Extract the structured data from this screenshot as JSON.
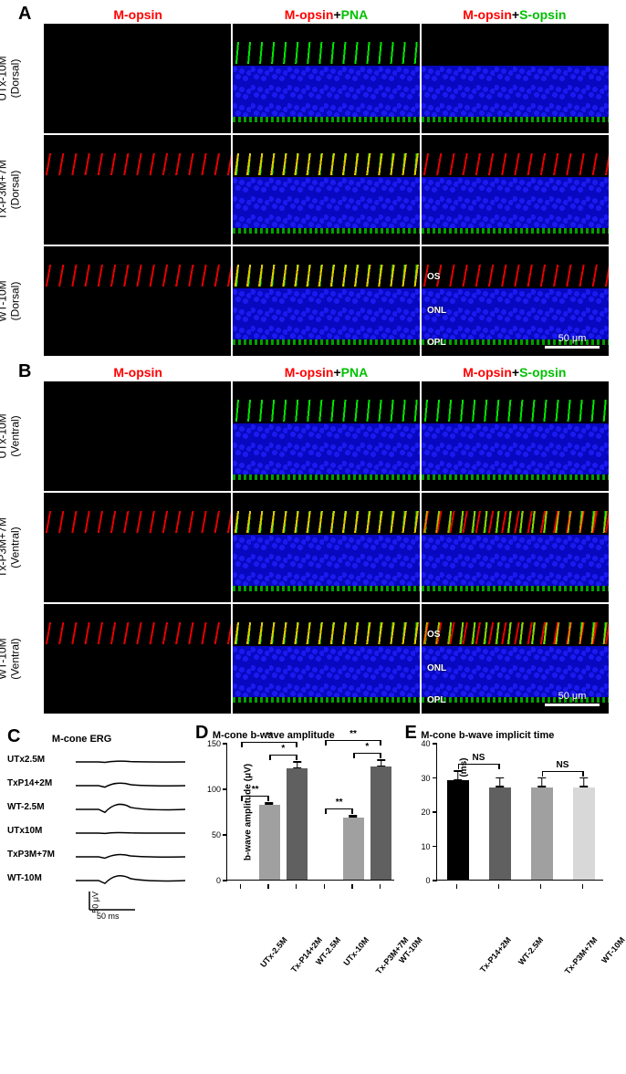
{
  "panel_a": {
    "label": "A",
    "column_headers": [
      [
        {
          "text": "M-opsin",
          "color": "#ff0000"
        }
      ],
      [
        {
          "text": "M-opsin",
          "color": "#ff0000"
        },
        {
          "text": "+",
          "color": "#000000"
        },
        {
          "text": "PNA",
          "color": "#00c000"
        }
      ],
      [
        {
          "text": "M-opsin",
          "color": "#ff0000"
        },
        {
          "text": "+",
          "color": "#000000"
        },
        {
          "text": "S-opsin",
          "color": "#00c000"
        }
      ]
    ],
    "rows": [
      {
        "label_line1": "UTx-10M",
        "label_line2": "(Dorsal)",
        "has_mopsin": false,
        "has_sopsin": false
      },
      {
        "label_line1": "Tx-P3M+7M",
        "label_line2": "(Dorsal)",
        "has_mopsin": true,
        "has_sopsin": false
      },
      {
        "label_line1": "WT-10M",
        "label_line2": "(Dorsal)",
        "has_mopsin": true,
        "has_sopsin": false,
        "annotations": [
          "OS",
          "ONL",
          "OPL"
        ],
        "scale_bar": "50 μm"
      }
    ]
  },
  "panel_b": {
    "label": "B",
    "column_headers": [
      [
        {
          "text": "M-opsin",
          "color": "#ff0000"
        }
      ],
      [
        {
          "text": "M-opsin",
          "color": "#ff0000"
        },
        {
          "text": "+",
          "color": "#000000"
        },
        {
          "text": "PNA",
          "color": "#00c000"
        }
      ],
      [
        {
          "text": "M-opsin",
          "color": "#ff0000"
        },
        {
          "text": "+",
          "color": "#000000"
        },
        {
          "text": "S-opsin",
          "color": "#00c000"
        }
      ]
    ],
    "rows": [
      {
        "label_line1": "UTx-10M",
        "label_line2": "(Ventral)",
        "has_mopsin": false,
        "has_sopsin": true
      },
      {
        "label_line1": "Tx-P3M+7M",
        "label_line2": "(Ventral)",
        "has_mopsin": true,
        "has_sopsin": true
      },
      {
        "label_line1": "WT-10M",
        "label_line2": "(Ventral)",
        "has_mopsin": true,
        "has_sopsin": true,
        "annotations": [
          "OS",
          "ONL",
          "OPL"
        ],
        "scale_bar": "50 μm"
      }
    ]
  },
  "panel_c": {
    "label": "C",
    "title": "M-cone ERG",
    "traces": [
      {
        "label": "UTx2.5M",
        "amplitude": 0.15
      },
      {
        "label": "TxP14+2M",
        "amplitude": 0.5
      },
      {
        "label": "WT-2.5M",
        "amplitude": 1.0
      },
      {
        "label": "UTx10M",
        "amplitude": 0.1
      },
      {
        "label": "TxP3M+7M",
        "amplitude": 0.45
      },
      {
        "label": "WT-10M",
        "amplitude": 0.95
      }
    ],
    "scale_y": "50 μV",
    "scale_x": "50 ms"
  },
  "panel_d": {
    "label": "D",
    "title": "M-cone b-wave amplitude",
    "y_axis_label": "b-wave amplitude (μV)",
    "ylim": [
      0,
      150
    ],
    "ytick_step": 50,
    "bars": [
      {
        "label": "UTx-2.5M",
        "value": 0,
        "err": 0,
        "color": "#d0d0d0"
      },
      {
        "label": "Tx-P14+2M",
        "value": 82,
        "err": 3,
        "color": "#a0a0a0"
      },
      {
        "label": "WT-2.5M",
        "value": 122,
        "err": 8,
        "color": "#606060"
      },
      {
        "label": "UTx-10M",
        "value": 0,
        "err": 0,
        "color": "#d0d0d0"
      },
      {
        "label": "Tx-P3M+7M",
        "value": 68,
        "err": 3,
        "color": "#a0a0a0"
      },
      {
        "label": "WT-10M",
        "value": 124,
        "err": 8,
        "color": "#606060"
      }
    ],
    "significance": [
      {
        "from": 0,
        "to": 1,
        "label": "**",
        "level": 1
      },
      {
        "from": 1,
        "to": 2,
        "label": "*",
        "level": 1
      },
      {
        "from": 0,
        "to": 2,
        "label": "**",
        "level": 2
      },
      {
        "from": 3,
        "to": 4,
        "label": "**",
        "level": 1
      },
      {
        "from": 4,
        "to": 5,
        "label": "*",
        "level": 1
      },
      {
        "from": 3,
        "to": 5,
        "label": "**",
        "level": 2
      }
    ]
  },
  "panel_e": {
    "label": "E",
    "title": "M-cone b-wave implicit time",
    "y_axis_label": "b-wave implicit time (ms)",
    "ylim": [
      0,
      40
    ],
    "ytick_step": 10,
    "bars": [
      {
        "label": "Tx-P14+2M",
        "value": 29,
        "err": 3,
        "color": "#000000"
      },
      {
        "label": "WT-2.5M",
        "value": 27,
        "err": 3,
        "color": "#606060"
      },
      {
        "label": "Tx-P3M+7M",
        "value": 27,
        "err": 3,
        "color": "#a0a0a0"
      },
      {
        "label": "WT-10M",
        "value": 27,
        "err": 3,
        "color": "#d8d8d8"
      }
    ],
    "significance": [
      {
        "from": 0,
        "to": 1,
        "label": "NS",
        "level": 1
      },
      {
        "from": 2,
        "to": 3,
        "label": "NS",
        "level": 1
      }
    ]
  },
  "colors": {
    "mopsin": "#ff0000",
    "pna": "#00ff00",
    "sopsin": "#00ff00",
    "dapi": "#0808c0",
    "background": "#000000"
  }
}
